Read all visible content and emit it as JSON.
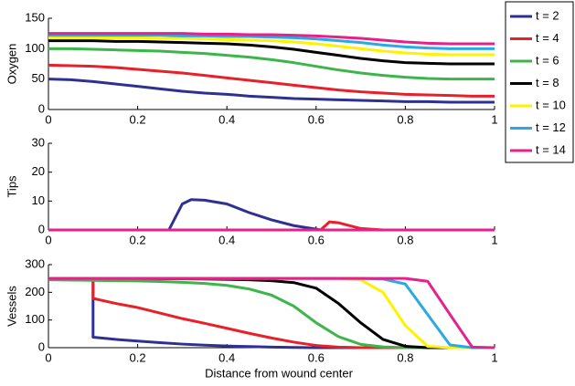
{
  "chart_data": [
    {
      "type": "line",
      "ylabel": "Oxygen",
      "x": [
        0,
        0.05,
        0.1,
        0.15,
        0.2,
        0.25,
        0.3,
        0.35,
        0.4,
        0.45,
        0.5,
        0.55,
        0.6,
        0.65,
        0.7,
        0.75,
        0.8,
        0.85,
        0.9,
        0.95,
        1
      ],
      "xlim": [
        0,
        1
      ],
      "xticks": [
        0,
        0.2,
        0.4,
        0.6,
        0.8,
        1
      ],
      "ylim": [
        0,
        150
      ],
      "yticks": [
        0,
        50,
        100,
        150
      ],
      "series": [
        {
          "name": "t = 2",
          "color": "#2e3192",
          "values": [
            50,
            49,
            46,
            42,
            38,
            34,
            30,
            27,
            25,
            22,
            20,
            18,
            17,
            16,
            15,
            14,
            13,
            13,
            12,
            12,
            12
          ]
        },
        {
          "name": "t = 4",
          "color": "#e8202a",
          "values": [
            73,
            72,
            71,
            69,
            66,
            63,
            60,
            56,
            52,
            48,
            44,
            40,
            36,
            32,
            29,
            27,
            25,
            24,
            23,
            22,
            22
          ]
        },
        {
          "name": "t = 6",
          "color": "#3db54a",
          "values": [
            100,
            100,
            99,
            98,
            97,
            96,
            94,
            92,
            89,
            86,
            82,
            77,
            71,
            65,
            60,
            56,
            53,
            51,
            50,
            50,
            50
          ]
        },
        {
          "name": "t = 8",
          "color": "#000000",
          "values": [
            113,
            113,
            113,
            112,
            112,
            111,
            110,
            109,
            108,
            106,
            103,
            99,
            94,
            89,
            84,
            80,
            77,
            76,
            75,
            75,
            75
          ]
        },
        {
          "name": "t = 10",
          "color": "#fff200",
          "values": [
            118,
            118,
            118,
            118,
            118,
            117,
            117,
            116,
            115,
            114,
            113,
            111,
            108,
            104,
            100,
            96,
            93,
            91,
            90,
            90,
            90
          ]
        },
        {
          "name": "t = 12",
          "color": "#29abe2",
          "values": [
            122,
            122,
            122,
            122,
            122,
            122,
            121,
            121,
            120,
            120,
            119,
            118,
            116,
            113,
            110,
            106,
            103,
            101,
            100,
            100,
            100
          ]
        },
        {
          "name": "t = 14",
          "color": "#e6218c",
          "values": [
            125,
            125,
            125,
            125,
            125,
            125,
            125,
            124,
            124,
            123,
            123,
            122,
            121,
            119,
            117,
            114,
            111,
            109,
            108,
            108,
            108
          ]
        }
      ]
    },
    {
      "type": "line",
      "ylabel": "Tips",
      "x": [
        0,
        0.27,
        0.3,
        0.32,
        0.35,
        0.4,
        0.45,
        0.5,
        0.55,
        0.6,
        0.61,
        0.63,
        0.65,
        0.7,
        0.75,
        1
      ],
      "xlim": [
        0,
        1
      ],
      "xticks": [
        0,
        0.2,
        0.4,
        0.6,
        0.8,
        1
      ],
      "ylim": [
        0,
        30
      ],
      "yticks": [
        0,
        10,
        20,
        30
      ],
      "series": [
        {
          "color": "#2e3192",
          "values": [
            0,
            0,
            9,
            10.5,
            10.3,
            9,
            6,
            3.5,
            1.5,
            0.3,
            0,
            0,
            0,
            0,
            0,
            0
          ]
        },
        {
          "color": "#e8202a",
          "values": [
            0,
            0,
            0,
            0,
            0,
            0,
            0,
            0,
            0,
            0,
            0,
            2.8,
            2.5,
            0.5,
            0,
            0
          ]
        },
        {
          "color": "#3db54a",
          "values": [
            0,
            0,
            0,
            0,
            0,
            0,
            0,
            0,
            0,
            0,
            0,
            0,
            0,
            0,
            0,
            0
          ]
        },
        {
          "color": "#000000",
          "values": [
            0,
            0,
            0,
            0,
            0,
            0,
            0,
            0,
            0,
            0,
            0,
            0,
            0,
            0,
            0,
            0
          ]
        },
        {
          "color": "#fff200",
          "values": [
            0,
            0,
            0,
            0,
            0,
            0,
            0,
            0,
            0,
            0,
            0,
            0,
            0,
            0,
            0,
            0
          ]
        },
        {
          "color": "#29abe2",
          "values": [
            0,
            0,
            0,
            0,
            0,
            0,
            0,
            0,
            0,
            0,
            0,
            0,
            0,
            0,
            0,
            0
          ]
        },
        {
          "color": "#e6218c",
          "values": [
            0,
            0,
            0,
            0,
            0,
            0,
            0,
            0,
            0,
            0,
            0,
            0,
            0,
            0,
            0,
            0
          ]
        }
      ]
    },
    {
      "type": "line",
      "ylabel": "Vessels",
      "xlabel": "Distance from wound center",
      "x": [
        0,
        0.1,
        0.1,
        0.15,
        0.2,
        0.25,
        0.3,
        0.35,
        0.4,
        0.45,
        0.5,
        0.55,
        0.6,
        0.65,
        0.7,
        0.75,
        0.8,
        0.85,
        0.9,
        0.95,
        1
      ],
      "xlim": [
        0,
        1
      ],
      "xticks": [
        0,
        0.2,
        0.4,
        0.6,
        0.8,
        1
      ],
      "ylim": [
        0,
        300
      ],
      "yticks": [
        0,
        100,
        200,
        300
      ],
      "series": [
        {
          "color": "#2e3192",
          "values": [
            null,
            250,
            38,
            30,
            24,
            18,
            13,
            9,
            6,
            4,
            2,
            1,
            0,
            0,
            0,
            0,
            0,
            0,
            0,
            0,
            0
          ]
        },
        {
          "color": "#e8202a",
          "values": [
            null,
            250,
            178,
            160,
            145,
            125,
            105,
            88,
            70,
            52,
            35,
            20,
            8,
            2,
            0,
            0,
            0,
            0,
            0,
            0,
            0
          ]
        },
        {
          "color": "#3db54a",
          "values": [
            245,
            243,
            243,
            242,
            241,
            239,
            236,
            232,
            225,
            212,
            190,
            150,
            90,
            40,
            12,
            3,
            0,
            0,
            0,
            0,
            0
          ]
        },
        {
          "color": "#000000",
          "values": [
            250,
            250,
            250,
            250,
            250,
            249,
            249,
            248,
            247,
            245,
            242,
            235,
            215,
            160,
            90,
            30,
            5,
            0,
            0,
            0,
            0
          ]
        },
        {
          "color": "#fff200",
          "values": [
            250,
            250,
            250,
            250,
            250,
            250,
            250,
            250,
            250,
            250,
            250,
            250,
            250,
            250,
            245,
            200,
            80,
            5,
            0,
            0,
            0
          ]
        },
        {
          "color": "#29abe2",
          "values": [
            250,
            250,
            250,
            250,
            250,
            250,
            250,
            250,
            250,
            250,
            250,
            250,
            250,
            250,
            250,
            248,
            230,
            120,
            10,
            0,
            0
          ]
        },
        {
          "color": "#e6218c",
          "values": [
            250,
            250,
            250,
            250,
            250,
            250,
            250,
            250,
            250,
            250,
            250,
            250,
            250,
            250,
            250,
            250,
            250,
            240,
            120,
            2,
            0
          ]
        }
      ]
    }
  ]
}
